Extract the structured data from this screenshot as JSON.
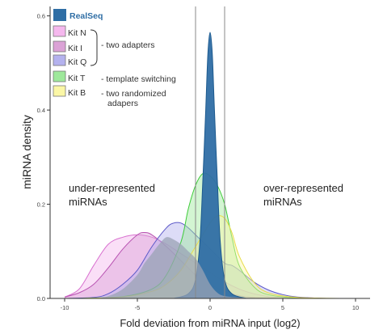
{
  "chart_data": {
    "type": "area",
    "xlabel": "Fold deviation from miRNA input (log2)",
    "ylabel": "miRNA density",
    "xlim": [
      -11,
      11
    ],
    "ylim": [
      0,
      0.62
    ],
    "x_ticks": [
      "-10",
      "-5",
      "0",
      "5",
      "10"
    ],
    "y_ticks": [
      "0.0",
      "0.2",
      "0.4",
      "0.6"
    ],
    "reference_lines_x": [
      -1,
      1
    ],
    "legend": [
      {
        "label": "RealSeq",
        "color": "#2f6ea5",
        "bold": true
      },
      {
        "label": "Kit N",
        "color": "#f5b8ee"
      },
      {
        "label": "Kit I",
        "color": "#dba2d6"
      },
      {
        "label": "Kit Q",
        "color": "#b4b2ee"
      },
      {
        "label": "Kit T",
        "color": "#9ee89b"
      },
      {
        "label": "Kit B",
        "color": "#fbf7a6"
      }
    ],
    "legend_notes": [
      {
        "text": "- two adapters"
      },
      {
        "text": "- template switching"
      },
      {
        "text": "- two randomized"
      },
      {
        "text": "adapers"
      }
    ],
    "annotations": {
      "left": [
        "under-represented",
        "miRNAs"
      ],
      "right": [
        "over-represented",
        "miRNAs"
      ]
    },
    "series": [
      {
        "name": "Kit N",
        "fill": "#f5b8ee",
        "stroke": "#d870cf",
        "x": [
          -10,
          -9,
          -8,
          -7,
          -6,
          -5,
          -4,
          -3,
          -2,
          -1,
          0,
          1,
          2,
          3,
          4,
          5,
          6,
          7,
          8,
          10
        ],
        "y": [
          0.003,
          0.02,
          0.07,
          0.115,
          0.13,
          0.135,
          0.13,
          0.115,
          0.095,
          0.075,
          0.055,
          0.035,
          0.02,
          0.01,
          0.004,
          0.002,
          0.001,
          0.001,
          0.0,
          0.0
        ]
      },
      {
        "name": "Kit I",
        "fill": "#dba2d6",
        "stroke": "#b852b1",
        "x": [
          -10,
          -9,
          -8,
          -7,
          -6,
          -5,
          -4.5,
          -4,
          -3,
          -2,
          -1,
          0,
          1,
          2,
          3,
          4,
          5,
          6,
          8,
          10
        ],
        "y": [
          0.003,
          0.012,
          0.03,
          0.065,
          0.105,
          0.135,
          0.14,
          0.135,
          0.11,
          0.08,
          0.05,
          0.03,
          0.015,
          0.006,
          0.002,
          0.001,
          0.0,
          0.0,
          0.0,
          0.0
        ]
      },
      {
        "name": "Kit Q",
        "fill": "#b4b2ee",
        "stroke": "#5c58c8",
        "x": [
          -10,
          -8,
          -7,
          -6,
          -5,
          -4,
          -3,
          -2.5,
          -2,
          -1.5,
          -1,
          0,
          1,
          1.5,
          2,
          3,
          4,
          5,
          6,
          8,
          10
        ],
        "y": [
          0.0,
          0.002,
          0.01,
          0.03,
          0.06,
          0.11,
          0.15,
          0.16,
          0.16,
          0.15,
          0.135,
          0.105,
          0.075,
          0.07,
          0.06,
          0.035,
          0.018,
          0.008,
          0.003,
          0.0,
          0.0
        ]
      },
      {
        "name": "Kit T",
        "fill": "#9ee89b",
        "stroke": "#3ecb3a",
        "x": [
          -9,
          -6,
          -4,
          -3,
          -2,
          -1.5,
          -1,
          -0.5,
          0,
          0.5,
          1,
          1.5,
          2,
          3,
          4,
          6,
          9
        ],
        "y": [
          0.0,
          0.004,
          0.02,
          0.05,
          0.12,
          0.19,
          0.24,
          0.265,
          0.26,
          0.24,
          0.2,
          0.13,
          0.07,
          0.025,
          0.008,
          0.001,
          0.0
        ]
      },
      {
        "name": "Kit B",
        "fill": "#fbf7a6",
        "stroke": "#e7dc4a",
        "x": [
          -9,
          -6,
          -4,
          -3,
          -2,
          -1,
          0,
          0.5,
          1,
          1.5,
          2,
          3,
          4,
          6,
          9
        ],
        "y": [
          0.0,
          0.003,
          0.015,
          0.03,
          0.06,
          0.11,
          0.16,
          0.175,
          0.17,
          0.14,
          0.09,
          0.035,
          0.012,
          0.002,
          0.0
        ]
      },
      {
        "name": "RealSeq",
        "fill": "#2f6ea5",
        "stroke": "#1d5a8e",
        "x": [
          -2.5,
          -1.5,
          -1,
          -0.7,
          -0.5,
          -0.3,
          -0.15,
          0,
          0.15,
          0.3,
          0.5,
          0.7,
          1,
          1.5,
          2.5
        ],
        "y": [
          0.0,
          0.01,
          0.04,
          0.12,
          0.25,
          0.4,
          0.52,
          0.565,
          0.52,
          0.4,
          0.25,
          0.12,
          0.04,
          0.01,
          0.0
        ]
      },
      {
        "name": "",
        "fill": "#9aa3b4",
        "stroke": "#9aa3b4",
        "x": [
          -10,
          -8,
          -7,
          -6,
          -5,
          -4.5,
          -4,
          -3.5,
          -3,
          -2.5,
          -2,
          -1.5,
          -1,
          -0.5,
          0,
          0.5,
          1,
          2,
          3,
          4,
          6,
          8,
          10
        ],
        "y": [
          0.0,
          0.0,
          0.005,
          0.02,
          0.05,
          0.075,
          0.095,
          0.115,
          0.13,
          0.125,
          0.115,
          0.1,
          0.085,
          0.06,
          0.03,
          0.012,
          0.005,
          0.002,
          0.001,
          0.0,
          0.0,
          0.0,
          0.0
        ]
      }
    ]
  }
}
